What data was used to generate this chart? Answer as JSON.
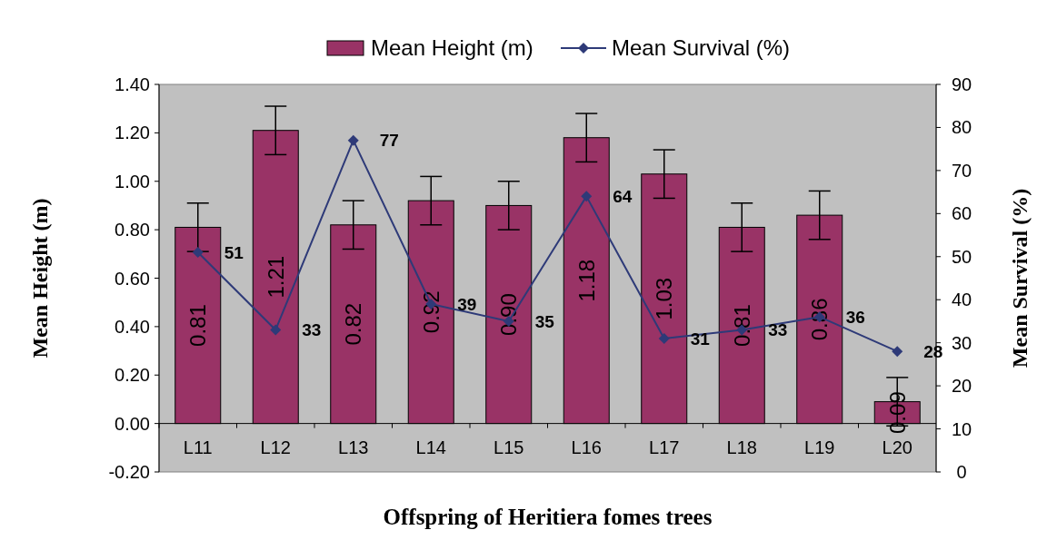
{
  "chart_data": {
    "type": "bar",
    "xlabel": "Offspring of Heritiera fomes trees",
    "ylabel": "Mean Height (m)",
    "y2label": "Mean Survival (%)",
    "categories": [
      "L11",
      "L12",
      "L13",
      "L14",
      "L15",
      "L16",
      "L17",
      "L18",
      "L19",
      "L20"
    ],
    "series": [
      {
        "name": "Mean Height (m)",
        "color": "#993366",
        "values": [
          0.81,
          1.21,
          0.82,
          0.92,
          0.9,
          1.18,
          1.03,
          0.81,
          0.86,
          0.09
        ],
        "errors": [
          0.1,
          0.1,
          0.1,
          0.1,
          0.1,
          0.1,
          0.1,
          0.1,
          0.1,
          0.1
        ],
        "value_labels": [
          "0.81",
          "1.21",
          "0.82",
          "0.92",
          "0.90",
          "1.18",
          "1.03",
          "0.81",
          "0.86",
          "0.09"
        ]
      },
      {
        "name": "Mean Survival (%)",
        "type": "line",
        "axis": "y2",
        "color": "#2e3a78",
        "marker": "diamond",
        "values": [
          51,
          33,
          77,
          39,
          35,
          64,
          31,
          33,
          36,
          28
        ],
        "value_labels": [
          "51",
          "33",
          "77",
          "39",
          "35",
          "64",
          "31",
          "33",
          "36",
          "28"
        ]
      }
    ],
    "ylim": [
      -0.2,
      1.4
    ],
    "yticks": [
      {
        "value": -0.2,
        "label": "-0.20"
      },
      {
        "value": 0,
        "label": "0.00"
      },
      {
        "value": 0.2,
        "label": "0.20"
      },
      {
        "value": 0.4,
        "label": "0.40"
      },
      {
        "value": 0.6,
        "label": "0.60"
      },
      {
        "value": 0.8,
        "label": "0.80"
      },
      {
        "value": 1,
        "label": "1.00"
      },
      {
        "value": 1.2,
        "label": "1.20"
      },
      {
        "value": 1.4,
        "label": "1.40"
      }
    ],
    "y2lim": [
      0,
      90
    ],
    "y2ticks": [
      0,
      10,
      20,
      30,
      40,
      50,
      60,
      70,
      80,
      90
    ],
    "legend": "top",
    "grid": false
  }
}
